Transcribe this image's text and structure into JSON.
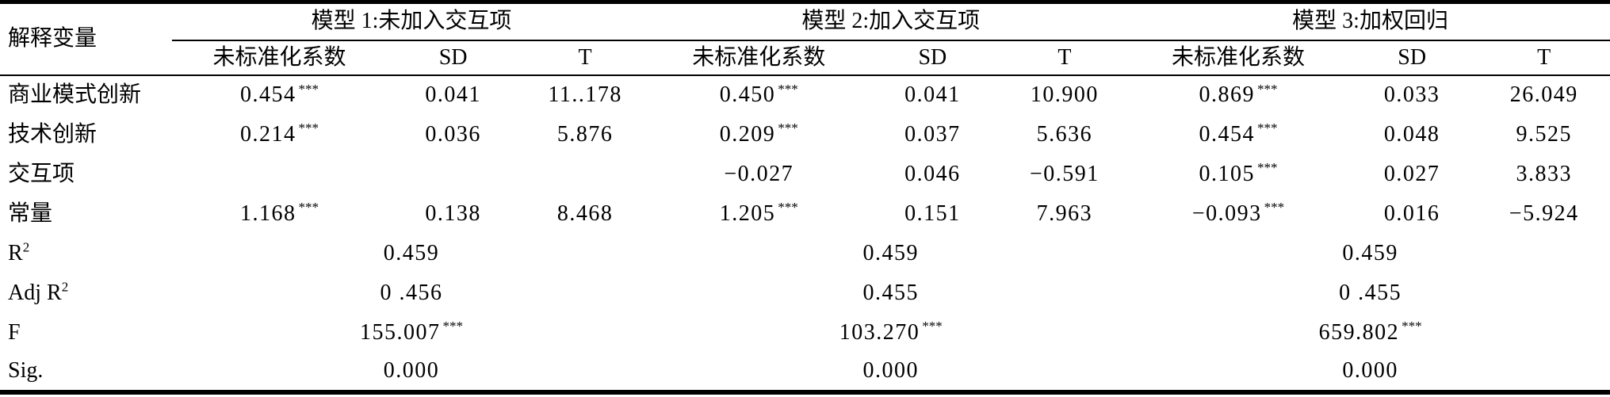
{
  "table": {
    "corner_header": "解释变量",
    "model_headers": [
      "模型 1:未加入交互项",
      "模型 2:加入交互项",
      "模型 3:加权回归"
    ],
    "sub_headers": [
      "未标准化系数",
      "SD",
      "T"
    ],
    "coef_rows": [
      {
        "label": "商业模式创新",
        "cells": [
          {
            "v": "0.454",
            "s": "***"
          },
          {
            "v": "0.041",
            "s": ""
          },
          {
            "v": "11..178",
            "s": ""
          },
          {
            "v": "0.450",
            "s": "***"
          },
          {
            "v": "0.041",
            "s": ""
          },
          {
            "v": "10.900",
            "s": ""
          },
          {
            "v": "0.869",
            "s": "***"
          },
          {
            "v": "0.033",
            "s": ""
          },
          {
            "v": "26.049",
            "s": ""
          }
        ]
      },
      {
        "label": "技术创新",
        "cells": [
          {
            "v": "0.214",
            "s": "***"
          },
          {
            "v": "0.036",
            "s": ""
          },
          {
            "v": "5.876",
            "s": ""
          },
          {
            "v": "0.209",
            "s": "***"
          },
          {
            "v": "0.037",
            "s": ""
          },
          {
            "v": "5.636",
            "s": ""
          },
          {
            "v": "0.454",
            "s": "***"
          },
          {
            "v": "0.048",
            "s": ""
          },
          {
            "v": "9.525",
            "s": ""
          }
        ]
      },
      {
        "label": "交互项",
        "cells": [
          {
            "v": "",
            "s": ""
          },
          {
            "v": "",
            "s": ""
          },
          {
            "v": "",
            "s": ""
          },
          {
            "v": "−0.027",
            "s": ""
          },
          {
            "v": "0.046",
            "s": ""
          },
          {
            "v": "−0.591",
            "s": ""
          },
          {
            "v": "0.105",
            "s": "***"
          },
          {
            "v": "0.027",
            "s": ""
          },
          {
            "v": "3.833",
            "s": ""
          }
        ]
      },
      {
        "label": "常量",
        "cells": [
          {
            "v": "1.168",
            "s": "***"
          },
          {
            "v": "0.138",
            "s": ""
          },
          {
            "v": "8.468",
            "s": ""
          },
          {
            "v": "1.205",
            "s": "***"
          },
          {
            "v": "0.151",
            "s": ""
          },
          {
            "v": "7.963",
            "s": ""
          },
          {
            "v": "−0.093",
            "s": "***"
          },
          {
            "v": "0.016",
            "s": ""
          },
          {
            "v": "−5.924",
            "s": ""
          }
        ]
      }
    ],
    "summary_rows": [
      {
        "base": "R",
        "sup": "2",
        "values": [
          {
            "v": "0.459",
            "s": ""
          },
          {
            "v": "0.459",
            "s": ""
          },
          {
            "v": "0.459",
            "s": ""
          }
        ]
      },
      {
        "base": "Adj R",
        "sup": "2",
        "values": [
          {
            "v": "0 .456",
            "s": ""
          },
          {
            "v": "0.455",
            "s": ""
          },
          {
            "v": "0 .455",
            "s": ""
          }
        ]
      },
      {
        "base": "F",
        "sup": "",
        "values": [
          {
            "v": "155.007",
            "s": "***"
          },
          {
            "v": "103.270",
            "s": "***"
          },
          {
            "v": "659.802",
            "s": "***"
          }
        ]
      },
      {
        "base": "Sig.",
        "sup": "",
        "values": [
          {
            "v": "0.000",
            "s": ""
          },
          {
            "v": "0.000",
            "s": ""
          },
          {
            "v": "0.000",
            "s": ""
          }
        ]
      }
    ]
  }
}
